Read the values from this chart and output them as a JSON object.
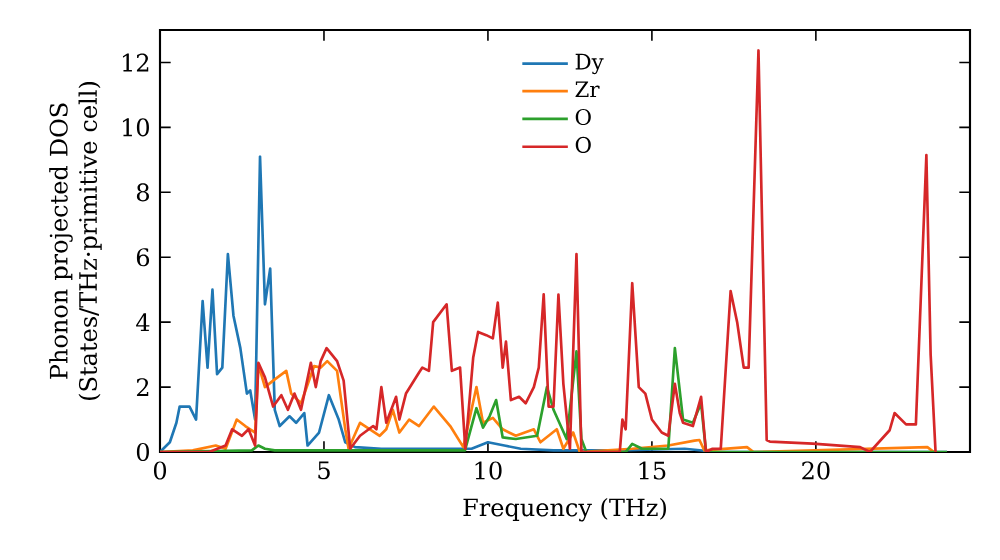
{
  "chart_data": {
    "type": "line",
    "xlabel": "Frequency (THz)",
    "ylabel": "Phonon projected DOS (States/THz·primitive cell)",
    "xlim": [
      0,
      24.7
    ],
    "ylim": [
      0,
      13
    ],
    "xticks": [
      0,
      5,
      10,
      15,
      20
    ],
    "yticks": [
      0,
      2,
      4,
      6,
      8,
      10,
      12
    ],
    "grid": false,
    "legend": "top",
    "marker": "none",
    "line_style": "solid",
    "series": [
      {
        "name": "Dy",
        "color": "#1f77b4",
        "x": [
          0,
          0.3,
          0.5,
          0.6,
          0.9,
          1.1,
          1.3,
          1.45,
          1.6,
          1.74,
          1.9,
          2.07,
          2.24,
          2.45,
          2.65,
          2.75,
          2.9,
          3.05,
          3.2,
          3.36,
          3.5,
          3.65,
          3.95,
          4.15,
          4.4,
          4.5,
          4.85,
          5.15,
          5.45,
          5.65,
          5.95,
          6.75,
          8,
          9.5,
          10,
          10.5,
          11,
          12,
          13,
          14,
          16,
          17,
          24
        ],
        "values": [
          0,
          0.3,
          0.9,
          1.4,
          1.4,
          1.0,
          4.65,
          2.6,
          5.0,
          2.4,
          2.6,
          6.1,
          4.2,
          3.2,
          1.8,
          1.9,
          1.0,
          9.1,
          4.55,
          5.65,
          1.3,
          0.8,
          1.1,
          0.9,
          1.2,
          0.2,
          0.6,
          1.75,
          1.0,
          0.3,
          0.15,
          0.1,
          0.1,
          0.1,
          0.3,
          0.2,
          0.1,
          0.05,
          0.05,
          0.05,
          0.1,
          0,
          0
        ]
      },
      {
        "name": "Zr",
        "color": "#ff7f0e",
        "x": [
          0,
          1,
          1.7,
          2.0,
          2.34,
          2.6,
          2.9,
          3.0,
          3.2,
          3.45,
          3.85,
          4.0,
          4.3,
          4.7,
          4.9,
          5.1,
          5.4,
          5.65,
          5.75,
          6.1,
          6.4,
          6.7,
          6.9,
          7.1,
          7.3,
          7.6,
          7.9,
          8.35,
          8.85,
          9.25,
          9.65,
          9.85,
          10.15,
          10.45,
          10.85,
          11.4,
          11.6,
          12.1,
          12.3,
          12.6,
          12.8,
          14.4,
          15.5,
          16.3,
          16.45,
          16.6,
          17.9,
          18.1,
          23.4,
          23.6
        ],
        "values": [
          0,
          0.05,
          0.2,
          0.1,
          1.0,
          0.8,
          0.6,
          2.7,
          2.0,
          2.2,
          2.5,
          1.8,
          1.5,
          2.65,
          2.6,
          2.8,
          2.5,
          0.7,
          0.1,
          0.9,
          0.7,
          0.5,
          0.7,
          1.3,
          0.6,
          1.0,
          0.8,
          1.4,
          0.8,
          0.15,
          2.0,
          0.9,
          1.05,
          0.7,
          0.5,
          0.7,
          0.3,
          0.7,
          0.1,
          0.6,
          0,
          0.1,
          0.2,
          0.35,
          0.37,
          0.05,
          0.15,
          0,
          0.15,
          0
        ]
      },
      {
        "name": "O",
        "color": "#2ca02c",
        "x": [
          0,
          2.8,
          3.0,
          3.2,
          3.5,
          9.3,
          9.65,
          9.85,
          10.05,
          10.25,
          10.45,
          10.85,
          11.5,
          11.8,
          12.0,
          12.4,
          12.7,
          12.85,
          13.0,
          14.2,
          14.4,
          14.7,
          15.5,
          15.7,
          15.95,
          16.25,
          16.5,
          16.65,
          24
        ],
        "values": [
          0,
          0.05,
          0.2,
          0.1,
          0.05,
          0.05,
          1.35,
          0.75,
          1.1,
          1.6,
          0.45,
          0.4,
          0.5,
          2.0,
          1.3,
          0.4,
          3.1,
          0.4,
          0,
          0,
          0.25,
          0.1,
          0.1,
          3.2,
          1.0,
          0.9,
          1.5,
          0,
          0
        ]
      },
      {
        "name": "O",
        "color": "#d62728",
        "x": [
          0,
          1.5,
          2.0,
          2.2,
          2.5,
          2.7,
          2.9,
          3.0,
          3.2,
          3.45,
          3.7,
          3.9,
          4.1,
          4.3,
          4.6,
          4.75,
          4.9,
          5.08,
          5.4,
          5.6,
          5.8,
          6.1,
          6.5,
          6.6,
          6.75,
          6.9,
          7.2,
          7.3,
          7.5,
          7.9,
          8.0,
          8.2,
          8.33,
          8.74,
          8.9,
          9.15,
          9.31,
          9.55,
          9.7,
          9.95,
          10.15,
          10.3,
          10.45,
          10.55,
          10.7,
          10.95,
          11.15,
          11.4,
          11.55,
          11.7,
          11.85,
          12.0,
          12.15,
          12.3,
          12.5,
          12.7,
          12.85,
          14.02,
          14.1,
          14.2,
          14.4,
          14.6,
          14.8,
          15.0,
          15.3,
          15.5,
          15.7,
          15.85,
          15.95,
          16.25,
          16.5,
          16.65,
          16.85,
          17.1,
          17.4,
          17.6,
          17.8,
          17.95,
          18.25,
          18.5,
          18.6,
          19.9,
          21.35,
          21.65,
          22.25,
          22.4,
          22.75,
          23.05,
          23.37,
          23.5,
          23.65
        ],
        "values": [
          0,
          0,
          0.2,
          0.7,
          0.5,
          0.7,
          0.2,
          2.75,
          2.3,
          1.4,
          1.75,
          1.3,
          1.8,
          1.3,
          2.75,
          2.0,
          2.8,
          3.2,
          2.8,
          2.2,
          0.1,
          0.5,
          0.8,
          0.7,
          2.0,
          0.9,
          1.7,
          1.0,
          1.8,
          2.45,
          2.6,
          2.5,
          4.0,
          4.55,
          2.5,
          2.6,
          0.1,
          2.9,
          3.7,
          3.6,
          3.5,
          4.6,
          2.6,
          3.4,
          1.6,
          1.7,
          1.5,
          2.0,
          2.6,
          4.86,
          1.4,
          1.4,
          4.85,
          2.1,
          0.1,
          6.1,
          0,
          0,
          1.0,
          0.7,
          5.2,
          2.0,
          1.8,
          1.0,
          0.6,
          0.5,
          2.1,
          1.2,
          0.9,
          0.8,
          1.7,
          0,
          0.1,
          0.1,
          4.96,
          4.0,
          2.6,
          2.6,
          12.37,
          0.37,
          0.32,
          0.26,
          0.15,
          0,
          0.67,
          1.2,
          0.85,
          0.85,
          9.15,
          3.0,
          0
        ]
      }
    ]
  }
}
